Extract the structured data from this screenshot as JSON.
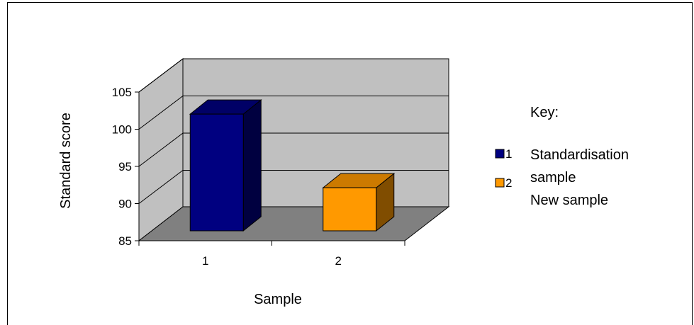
{
  "chart_data": {
    "type": "bar",
    "style": "3d-column",
    "categories": [
      "1",
      "2"
    ],
    "values": [
      100.7,
      90.8
    ],
    "colors": [
      "#000080",
      "#FF9900"
    ],
    "xlabel": "Sample",
    "ylabel": "Standard score",
    "ylim": [
      85,
      105
    ],
    "yticks": [
      "85",
      "90",
      "95",
      "100",
      "105"
    ],
    "grid": true,
    "legend": {
      "title": "Key:",
      "placement": "right",
      "entries": [
        {
          "marker": "1",
          "color": "#000080"
        },
        {
          "marker": "2",
          "color": "#FF9900"
        }
      ],
      "text_lines": [
        "Standardisation",
        "sample",
        "New sample"
      ]
    }
  }
}
